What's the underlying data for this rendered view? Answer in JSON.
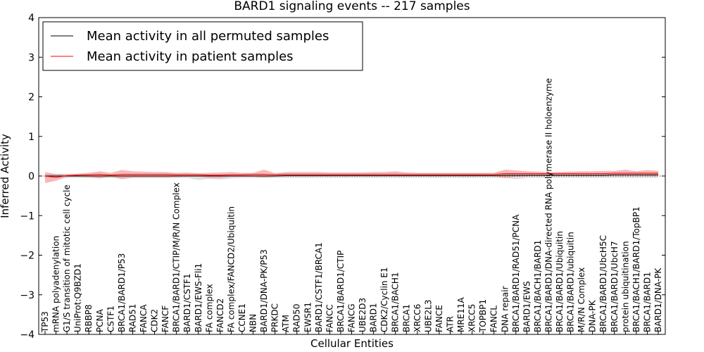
{
  "chart_data": {
    "type": "line",
    "title": "BARD1 signaling events -- 217 samples",
    "xlabel": "Cellular Entities",
    "ylabel": "Inferred Activity",
    "ylim": [
      -4,
      4
    ],
    "yticks": [
      -4,
      -3,
      -2,
      -1,
      0,
      1,
      2,
      3,
      4
    ],
    "ytick_labels": [
      "−4",
      "−3",
      "−2",
      "−1",
      "0",
      "1",
      "2",
      "3",
      "4"
    ],
    "grid": false,
    "legend_position": "top-left",
    "categories": [
      "TP53",
      "mRNA polyadenylation",
      "G1/S transition of mitotic cell cycle",
      "UniProt:Q9BZD1",
      "RBBP8",
      "PCNA",
      "CSTF1",
      "BRCA1/BARD1/P53",
      "RAD51",
      "FANCA",
      "CDK2",
      "FANCF",
      "BRCA1/BARD1/CTIP/M/R/N Complex",
      "BARD1/CSTF1",
      "BARD1/EWS-Fli1",
      "FA complex",
      "FANCD2",
      "FA complex/FANCD2/Ubiquitin",
      "CCNE1",
      "NBN",
      "BARD1/DNA-PK/P53",
      "PRKDC",
      "ATM",
      "RAD50",
      "EWSR1",
      "BARD1/CSTF1/BRCA1",
      "FANCC",
      "BRCA1/BARD1/CTIP",
      "FANCG",
      "UBE2D3",
      "BARD1",
      "CDK2/Cyclin E1",
      "BRCA1/BACH1",
      "BRCA1",
      "XRCC6",
      "UBE2L3",
      "FANCE",
      "ATR",
      "MRE11A",
      "XRCC5",
      "TOPBP1",
      "FANCL",
      "DNA repair",
      "BRCA1/BARD1/RAD51/PCNA",
      "BARD1/EWS",
      "BRCA1/BACH1/BARD1",
      "BRCA1/BARD1/DNA-directed RNA polymerase II holoenzyme",
      "BRCA1/BARD1/Ubiquitin",
      "BRCA1/BARD1/ubiquitin",
      "M/R/N Complex",
      "DNA-PK",
      "BRCA1/BARD1/UbcH5C",
      "BRCA1/BARD1/UbcH7",
      "protein ubiquitination",
      "BRCA1/BACH1/BARD1/TopBP1",
      "BRCA1/BARD1",
      "BARD1/DNA-PK"
    ],
    "series": [
      {
        "name": "Mean activity in all permuted samples",
        "color": "#000000",
        "band_color": "#bbbbbb",
        "values": [
          0.0,
          0.0,
          0.0,
          0.0,
          0.0,
          0.0,
          0.0,
          0.0,
          0.0,
          0.0,
          0.0,
          0.0,
          0.0,
          0.0,
          0.0,
          0.0,
          0.0,
          0.0,
          0.0,
          0.0,
          0.0,
          0.0,
          0.01,
          0.01,
          0.01,
          0.01,
          0.01,
          0.01,
          0.01,
          0.01,
          0.01,
          0.01,
          0.01,
          0.01,
          0.01,
          0.01,
          0.01,
          0.01,
          0.01,
          0.01,
          0.01,
          0.01,
          0.02,
          0.02,
          0.02,
          0.02,
          0.02,
          0.02,
          0.02,
          0.02,
          0.02,
          0.02,
          0.03,
          0.03,
          0.03,
          0.03,
          0.03
        ],
        "band_low": [
          -0.05,
          -0.05,
          -0.05,
          -0.05,
          -0.05,
          -0.05,
          -0.05,
          -0.05,
          -0.05,
          -0.05,
          -0.05,
          -0.05,
          -0.05,
          -0.05,
          -0.1,
          -0.07,
          -0.09,
          -0.06,
          -0.05,
          -0.05,
          -0.05,
          -0.05,
          -0.05,
          -0.05,
          -0.05,
          -0.05,
          -0.05,
          -0.05,
          -0.05,
          -0.05,
          -0.05,
          -0.05,
          -0.05,
          -0.05,
          -0.05,
          -0.05,
          -0.05,
          -0.05,
          -0.05,
          -0.05,
          -0.05,
          -0.05,
          -0.05,
          -0.08,
          -0.05,
          -0.05,
          -0.05,
          -0.05,
          -0.05,
          -0.05,
          -0.05,
          -0.05,
          -0.05,
          -0.05,
          -0.05,
          -0.05,
          -0.05
        ],
        "band_high": [
          0.05,
          0.05,
          0.05,
          0.05,
          0.05,
          0.05,
          0.05,
          0.05,
          0.05,
          0.05,
          0.05,
          0.05,
          0.05,
          0.05,
          0.05,
          0.05,
          0.05,
          0.05,
          0.05,
          0.05,
          0.05,
          0.05,
          0.06,
          0.06,
          0.06,
          0.06,
          0.06,
          0.06,
          0.06,
          0.06,
          0.06,
          0.06,
          0.06,
          0.06,
          0.06,
          0.06,
          0.06,
          0.06,
          0.06,
          0.06,
          0.06,
          0.06,
          0.07,
          0.07,
          0.07,
          0.07,
          0.07,
          0.07,
          0.07,
          0.07,
          0.07,
          0.07,
          0.08,
          0.08,
          0.08,
          0.08,
          0.08
        ]
      },
      {
        "name": "Mean activity in patient samples",
        "color": "#ff0000",
        "band_color": "#f08080",
        "values": [
          0.0,
          -0.03,
          0.01,
          0.02,
          0.03,
          0.04,
          0.02,
          0.04,
          0.04,
          0.04,
          0.04,
          0.04,
          0.03,
          0.03,
          0.03,
          0.02,
          0.02,
          0.03,
          0.03,
          0.04,
          0.04,
          0.03,
          0.04,
          0.04,
          0.04,
          0.04,
          0.04,
          0.04,
          0.04,
          0.04,
          0.04,
          0.04,
          0.04,
          0.04,
          0.04,
          0.04,
          0.04,
          0.04,
          0.04,
          0.04,
          0.04,
          0.04,
          0.06,
          0.06,
          0.06,
          0.06,
          0.06,
          0.06,
          0.06,
          0.06,
          0.06,
          0.06,
          0.07,
          0.07,
          0.07,
          0.07,
          0.07
        ],
        "band_low": [
          -0.18,
          -0.12,
          -0.02,
          -0.02,
          -0.03,
          -0.06,
          -0.02,
          -0.08,
          -0.04,
          -0.04,
          -0.04,
          -0.04,
          -0.03,
          -0.02,
          -0.02,
          -0.05,
          -0.05,
          -0.02,
          -0.02,
          -0.02,
          -0.04,
          -0.02,
          -0.01,
          -0.01,
          -0.01,
          -0.01,
          -0.01,
          -0.01,
          -0.01,
          -0.01,
          -0.01,
          -0.01,
          -0.01,
          -0.01,
          -0.01,
          -0.01,
          -0.01,
          -0.01,
          -0.01,
          -0.01,
          -0.01,
          -0.01,
          -0.05,
          -0.02,
          -0.01,
          0.0,
          0.0,
          0.0,
          0.0,
          0.0,
          0.0,
          0.0,
          0.0,
          0.0,
          0.0,
          0.0,
          0.0
        ],
        "band_high": [
          0.1,
          0.05,
          0.05,
          0.06,
          0.08,
          0.12,
          0.08,
          0.15,
          0.12,
          0.11,
          0.1,
          0.1,
          0.08,
          0.09,
          0.07,
          0.08,
          0.09,
          0.1,
          0.08,
          0.08,
          0.16,
          0.07,
          0.1,
          0.1,
          0.1,
          0.1,
          0.09,
          0.09,
          0.09,
          0.09,
          0.1,
          0.1,
          0.12,
          0.09,
          0.08,
          0.08,
          0.08,
          0.08,
          0.08,
          0.08,
          0.08,
          0.08,
          0.16,
          0.14,
          0.12,
          0.11,
          0.1,
          0.1,
          0.11,
          0.12,
          0.12,
          0.13,
          0.13,
          0.16,
          0.12,
          0.15,
          0.13
        ]
      }
    ]
  }
}
